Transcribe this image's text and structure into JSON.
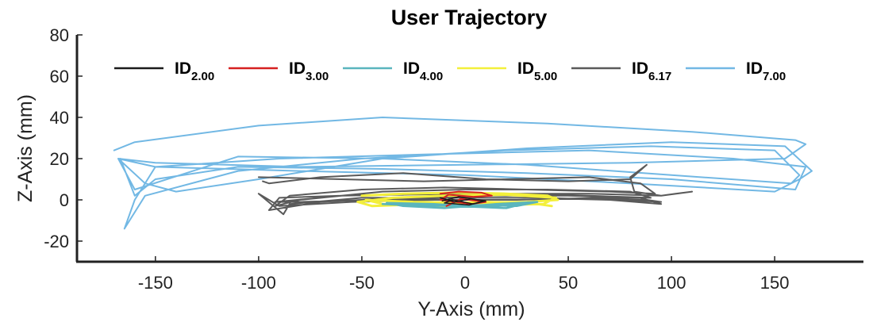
{
  "chart_data": {
    "type": "line",
    "title": "User Trajectory",
    "xlabel": "Y-Axis (mm)",
    "ylabel": "Z-Axis (mm)",
    "xlim": [
      -188,
      193
    ],
    "ylim": [
      -30,
      80
    ],
    "xticks": [
      "-150",
      "-100",
      "-50",
      "0",
      "50",
      "100",
      "150"
    ],
    "yticks": [
      "-20",
      "0",
      "20",
      "40",
      "60",
      "80"
    ],
    "grid": false,
    "legend_position": "top",
    "series": [
      {
        "name": "ID",
        "sub": "2.00",
        "color": "#1a1a1a",
        "x": [
          -12,
          -5,
          3,
          10,
          4,
          -6,
          -10,
          2,
          9,
          -3,
          -11
        ],
        "y": [
          1,
          -1,
          0.5,
          -0.5,
          -2,
          0,
          -1.5,
          -2.5,
          -0.5,
          1.5,
          -0.5
        ]
      },
      {
        "name": "ID",
        "sub": "3.00",
        "color": "#d62020",
        "x": [
          -12,
          -3,
          8,
          13,
          4,
          -8,
          -12,
          3,
          10,
          -2,
          -9
        ],
        "y": [
          3,
          4,
          3.5,
          2,
          1.5,
          2.5,
          0,
          -2,
          -1,
          0.5,
          -3
        ]
      },
      {
        "name": "ID",
        "sub": "4.00",
        "color": "#5ab5bd",
        "x": [
          -40,
          -20,
          5,
          25,
          35,
          15,
          -10,
          -30,
          -38,
          -15,
          10,
          28,
          20,
          -5,
          -28
        ],
        "y": [
          -2,
          -3,
          -2.5,
          -3,
          -1,
          -2,
          -4,
          -3,
          -1.5,
          -2,
          -3.5,
          -2,
          -4,
          -3,
          -2.5
        ]
      },
      {
        "name": "ID",
        "sub": "5.00",
        "color": "#f3ef3a",
        "x": [
          -50,
          -30,
          -5,
          20,
          40,
          45,
          30,
          5,
          -25,
          -48,
          -40,
          -10,
          15,
          38,
          44,
          20,
          -10,
          -35,
          -52,
          -45,
          -20,
          10,
          35,
          42
        ],
        "y": [
          2,
          3,
          3.5,
          3,
          2,
          0,
          -1,
          -1.5,
          -1,
          0,
          -2,
          -3,
          -2.5,
          -2,
          1,
          2.5,
          2,
          1,
          -1,
          -3,
          -2,
          -1,
          -2,
          -3
        ]
      },
      {
        "name": "ID",
        "sub": "6.17",
        "color": "#5a5a5a",
        "x": [
          -100,
          -60,
          -20,
          20,
          60,
          85,
          92,
          70,
          30,
          -10,
          -50,
          -85,
          -92,
          -80,
          -40,
          0,
          40,
          80,
          90,
          60,
          20,
          -20,
          -60,
          -90,
          -95,
          -70,
          -30,
          10,
          50,
          85,
          95,
          70,
          30,
          -10,
          -50,
          -85,
          -88,
          -100,
          -90,
          -55,
          -15,
          25,
          65,
          88,
          95,
          75,
          35,
          -5,
          -45,
          -80,
          -92,
          -60,
          0,
          60,
          95,
          102,
          110,
          95,
          82,
          80,
          88,
          80,
          50,
          10,
          -30,
          -70,
          -95,
          -98
        ],
        "y": [
          11,
          10,
          9,
          10,
          11,
          8,
          3,
          4,
          5,
          6,
          5,
          2,
          -3,
          0,
          4,
          5,
          5,
          4,
          1,
          2,
          3,
          3,
          2,
          1,
          -5,
          -1,
          1,
          2,
          2,
          1,
          -2,
          0,
          1,
          1,
          1,
          -2,
          -7,
          3,
          -3,
          -1,
          0,
          0,
          1,
          0,
          -1,
          0,
          1,
          1,
          0,
          -1,
          -1,
          2,
          3,
          3,
          2,
          3,
          4,
          2,
          4,
          11,
          17,
          10,
          9,
          10,
          13,
          11,
          8,
          9
        ]
      },
      {
        "name": "ID",
        "sub": "7.00",
        "color": "#72b8e4",
        "x": [
          -170,
          -160,
          -100,
          -40,
          40,
          110,
          160,
          165,
          155,
          80,
          0,
          -80,
          -150,
          -168,
          -155,
          -140,
          -100,
          -40,
          30,
          100,
          155,
          168,
          162,
          150,
          80,
          0,
          -80,
          -150,
          -160,
          -165,
          -155,
          -110,
          -50,
          20,
          90,
          150,
          162,
          158,
          100,
          30,
          -40,
          -110,
          -160,
          -168,
          -150,
          -90,
          -20,
          60,
          130,
          165,
          160,
          100,
          30,
          -40,
          -110,
          -150,
          -160,
          -167
        ],
        "y": [
          24,
          28,
          36,
          40,
          37,
          33,
          29,
          27,
          20,
          18,
          17,
          16,
          18,
          20,
          8,
          4,
          10,
          20,
          25,
          28,
          26,
          14,
          10,
          4,
          8,
          12,
          14,
          16,
          0,
          -14,
          2,
          14,
          20,
          24,
          26,
          24,
          12,
          8,
          12,
          17,
          20,
          21,
          5,
          20,
          16,
          20,
          22,
          24,
          20,
          16,
          5,
          10,
          13,
          15,
          16,
          10,
          2,
          20
        ]
      }
    ]
  }
}
